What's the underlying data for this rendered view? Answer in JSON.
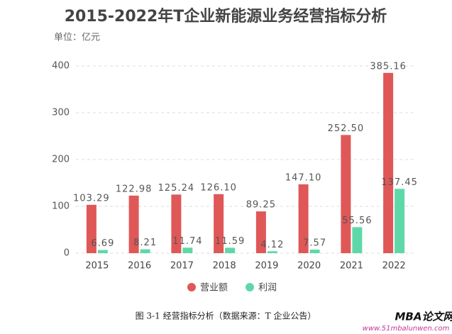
{
  "chart_data": {
    "type": "bar",
    "title": "2015-2022年T企业新能源业务经营指标分析",
    "subtitle": "单位：亿元",
    "categories": [
      "2015",
      "2016",
      "2017",
      "2018",
      "2019",
      "2020",
      "2021",
      "2022"
    ],
    "series": [
      {
        "name": "营业额",
        "color": "#e05757",
        "values": [
          103.29,
          122.98,
          125.24,
          126.1,
          89.25,
          147.1,
          252.5,
          385.16
        ],
        "value_labels": [
          "103.29",
          "122.98",
          "125.24",
          "126.10",
          "89.25",
          "147.10",
          "252.50",
          "385.16"
        ]
      },
      {
        "name": "利润",
        "color": "#5fd8a9",
        "values": [
          6.69,
          8.21,
          11.74,
          11.59,
          4.12,
          7.57,
          55.56,
          137.45
        ],
        "value_labels": [
          "6.69",
          "8.21",
          "11.74",
          "11.59",
          "4.12",
          "7.57",
          "55.56",
          "137.45"
        ]
      }
    ],
    "ylim": [
      0,
      400
    ],
    "yticks": [
      0,
      100,
      200,
      300,
      400
    ],
    "grid": true,
    "legend": "bottom"
  },
  "caption": "图 3-1 经营指标分析（数据来源：T 企业公告）",
  "watermark": {
    "title": "MBA论文网",
    "url": "www.51mbalunwen.com"
  }
}
